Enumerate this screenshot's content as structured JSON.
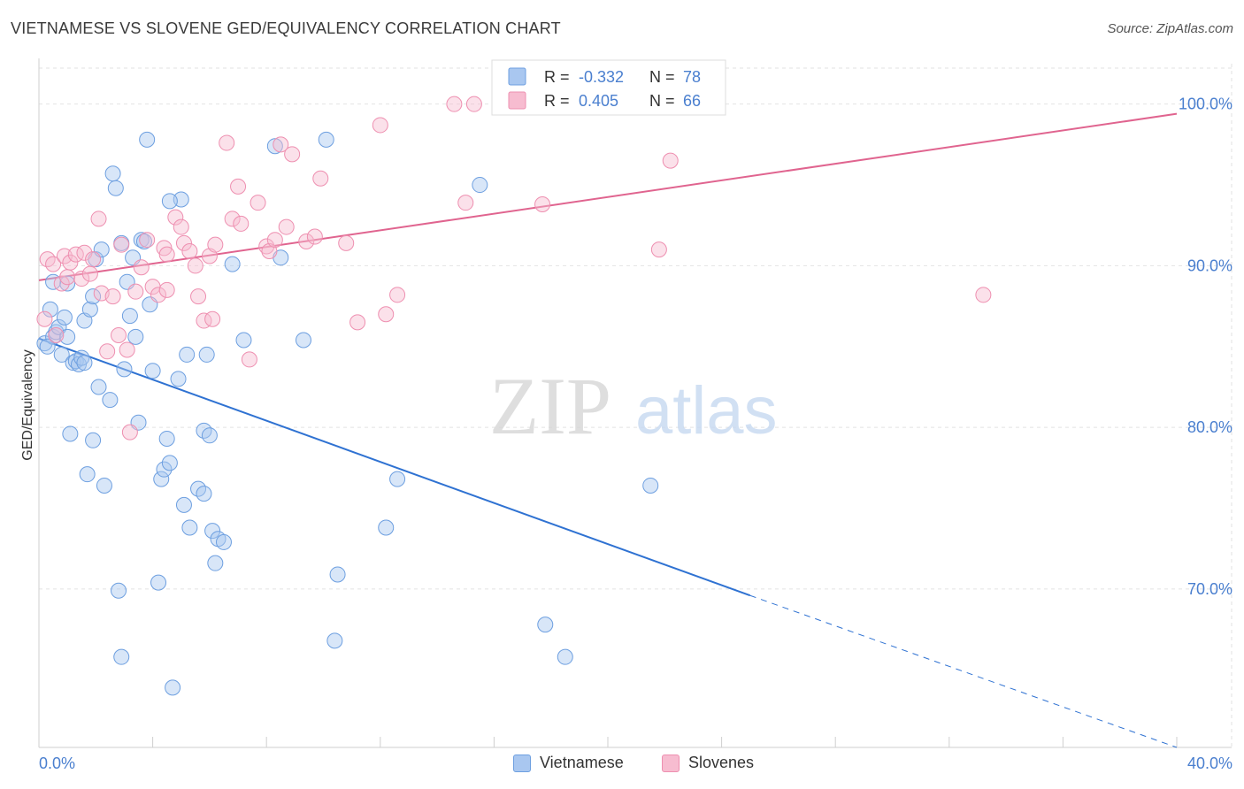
{
  "title": "VIETNAMESE VS SLOVENE GED/EQUIVALENCY CORRELATION CHART",
  "source": "Source: ZipAtlas.com",
  "watermark": {
    "zip": "ZIP",
    "atlas": "atlas"
  },
  "colors": {
    "blue_fill": "#a9c7f0",
    "blue_stroke": "#6d9fe0",
    "blue_line": "#2f72d2",
    "pink_fill": "#f7bcd0",
    "pink_stroke": "#ee8fb0",
    "pink_line": "#e0648f",
    "tick_label": "#4a7fcf",
    "grid": "#e2e2e2"
  },
  "legend_top": [
    {
      "r_label": "R =",
      "r_value": "-0.332",
      "n_label": "N =",
      "n_value": "78"
    },
    {
      "r_label": "R =",
      "r_value": "0.405",
      "n_label": "N =",
      "n_value": "66"
    }
  ],
  "chart_data": {
    "type": "scatter",
    "ylabel": "GED/Equivalency",
    "xlim": [
      0,
      40
    ],
    "ylim": [
      60.2,
      102.5
    ],
    "x_tick_labels": [
      "0.0%",
      "40.0%"
    ],
    "y_ticks": [
      70,
      80,
      90,
      100
    ],
    "y_tick_labels": [
      "70.0%",
      "80.0%",
      "90.0%",
      "100.0%"
    ],
    "grid": true,
    "legend_position": "bottom",
    "series": [
      {
        "name": "Vietnamese",
        "color": "blue",
        "r": -0.332,
        "n": 78,
        "trend": {
          "x0": 0,
          "y0": 85.5,
          "x1": 25,
          "y1": 69.6,
          "dashed_to_x": 40,
          "dashed_to_y": 60.2
        },
        "points": [
          [
            0.2,
            85.2
          ],
          [
            0.4,
            87.3
          ],
          [
            0.5,
            85.6
          ],
          [
            0.6,
            85.9
          ],
          [
            0.7,
            86.2
          ],
          [
            0.8,
            84.5
          ],
          [
            0.9,
            86.8
          ],
          [
            1.0,
            85.6
          ],
          [
            1.1,
            79.6
          ],
          [
            1.2,
            84.0
          ],
          [
            1.3,
            84.1
          ],
          [
            1.4,
            83.9
          ],
          [
            1.5,
            84.3
          ],
          [
            1.6,
            86.6
          ],
          [
            1.7,
            77.1
          ],
          [
            1.8,
            87.3
          ],
          [
            1.9,
            79.2
          ],
          [
            2.0,
            90.4
          ],
          [
            2.1,
            82.5
          ],
          [
            2.2,
            91.0
          ],
          [
            2.3,
            76.4
          ],
          [
            2.5,
            81.7
          ],
          [
            2.6,
            95.7
          ],
          [
            2.7,
            94.8
          ],
          [
            2.8,
            69.9
          ],
          [
            2.9,
            65.8
          ],
          [
            3.1,
            89.0
          ],
          [
            3.2,
            86.9
          ],
          [
            3.3,
            90.5
          ],
          [
            3.4,
            85.6
          ],
          [
            3.5,
            80.3
          ],
          [
            3.6,
            91.6
          ],
          [
            3.7,
            91.5
          ],
          [
            3.8,
            97.8
          ],
          [
            3.9,
            87.6
          ],
          [
            4.0,
            83.5
          ],
          [
            4.2,
            70.4
          ],
          [
            4.3,
            76.8
          ],
          [
            4.4,
            77.4
          ],
          [
            4.5,
            79.3
          ],
          [
            4.6,
            77.8
          ],
          [
            4.7,
            63.9
          ],
          [
            4.9,
            83.0
          ],
          [
            5.0,
            94.1
          ],
          [
            5.1,
            75.2
          ],
          [
            5.2,
            84.5
          ],
          [
            5.3,
            73.8
          ],
          [
            5.6,
            76.2
          ],
          [
            5.8,
            79.8
          ],
          [
            5.9,
            84.5
          ],
          [
            6.0,
            79.5
          ],
          [
            6.1,
            73.6
          ],
          [
            6.2,
            71.6
          ],
          [
            6.3,
            73.1
          ],
          [
            6.5,
            72.9
          ],
          [
            6.8,
            90.1
          ],
          [
            7.2,
            85.4
          ],
          [
            8.3,
            97.4
          ],
          [
            8.5,
            90.5
          ],
          [
            9.3,
            85.4
          ],
          [
            10.1,
            97.8
          ],
          [
            10.4,
            66.8
          ],
          [
            10.5,
            70.9
          ],
          [
            12.2,
            73.8
          ],
          [
            12.6,
            76.8
          ],
          [
            15.5,
            95.0
          ],
          [
            17.8,
            67.8
          ],
          [
            18.5,
            65.8
          ],
          [
            21.5,
            76.4
          ],
          [
            0.3,
            85.0
          ],
          [
            1.0,
            88.9
          ],
          [
            1.9,
            88.1
          ],
          [
            3.0,
            83.6
          ],
          [
            4.6,
            94.0
          ],
          [
            5.8,
            75.9
          ],
          [
            2.9,
            91.4
          ],
          [
            0.5,
            89.0
          ],
          [
            1.6,
            84.0
          ]
        ]
      },
      {
        "name": "Slovenes",
        "color": "pink",
        "r": 0.405,
        "n": 66,
        "trend": {
          "x0": 0,
          "y0": 89.1,
          "x1": 40,
          "y1": 99.4
        },
        "points": [
          [
            0.2,
            86.7
          ],
          [
            0.3,
            90.4
          ],
          [
            0.5,
            90.1
          ],
          [
            0.6,
            85.7
          ],
          [
            0.8,
            88.9
          ],
          [
            0.9,
            90.6
          ],
          [
            1.0,
            89.3
          ],
          [
            1.1,
            90.2
          ],
          [
            1.3,
            90.7
          ],
          [
            1.5,
            89.2
          ],
          [
            1.6,
            90.8
          ],
          [
            1.8,
            89.5
          ],
          [
            1.9,
            90.4
          ],
          [
            2.1,
            92.9
          ],
          [
            2.2,
            88.3
          ],
          [
            2.4,
            84.7
          ],
          [
            2.6,
            88.1
          ],
          [
            2.8,
            85.7
          ],
          [
            2.9,
            91.3
          ],
          [
            3.1,
            84.8
          ],
          [
            3.2,
            79.7
          ],
          [
            3.4,
            88.4
          ],
          [
            3.6,
            89.9
          ],
          [
            3.8,
            91.6
          ],
          [
            4.0,
            88.7
          ],
          [
            4.2,
            88.2
          ],
          [
            4.4,
            91.1
          ],
          [
            4.5,
            90.7
          ],
          [
            4.8,
            93.0
          ],
          [
            5.0,
            92.4
          ],
          [
            5.1,
            91.4
          ],
          [
            5.3,
            90.9
          ],
          [
            5.5,
            90.0
          ],
          [
            5.6,
            88.1
          ],
          [
            5.8,
            86.6
          ],
          [
            6.0,
            90.6
          ],
          [
            6.1,
            86.7
          ],
          [
            6.2,
            91.3
          ],
          [
            6.6,
            97.6
          ],
          [
            6.8,
            92.9
          ],
          [
            7.0,
            94.9
          ],
          [
            7.1,
            92.6
          ],
          [
            7.4,
            84.2
          ],
          [
            7.7,
            93.9
          ],
          [
            8.0,
            91.2
          ],
          [
            8.1,
            90.9
          ],
          [
            8.3,
            91.6
          ],
          [
            8.5,
            97.5
          ],
          [
            8.7,
            92.4
          ],
          [
            8.9,
            96.9
          ],
          [
            9.4,
            91.5
          ],
          [
            9.7,
            91.8
          ],
          [
            9.9,
            95.4
          ],
          [
            10.8,
            91.4
          ],
          [
            11.2,
            86.5
          ],
          [
            12.0,
            98.7
          ],
          [
            12.2,
            87.0
          ],
          [
            12.6,
            88.2
          ],
          [
            14.6,
            100.0
          ],
          [
            15.3,
            100.0
          ],
          [
            15.0,
            93.9
          ],
          [
            17.7,
            93.8
          ],
          [
            21.8,
            91.0
          ],
          [
            22.2,
            96.5
          ],
          [
            33.2,
            88.2
          ],
          [
            4.5,
            88.5
          ]
        ]
      }
    ]
  }
}
